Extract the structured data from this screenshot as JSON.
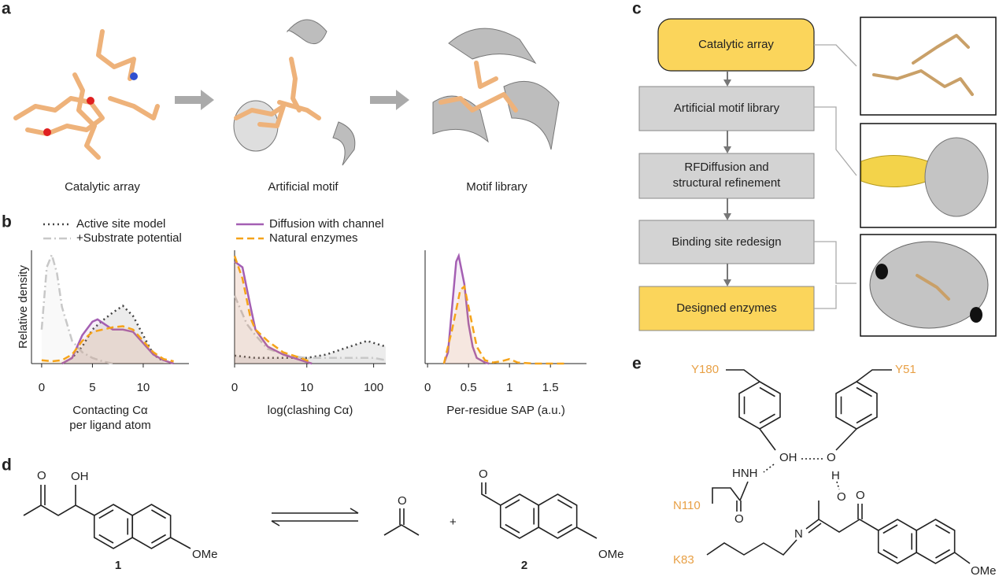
{
  "panel_labels": [
    "a",
    "b",
    "c",
    "d",
    "e"
  ],
  "panel_a": {
    "labels": [
      "Catalytic array",
      "Artificial motif",
      "Motif library"
    ]
  },
  "chart_data": [
    {
      "type": "line",
      "y_label": "Relative density",
      "x_label": [
        "Contacting Cα",
        "per ligand atom"
      ],
      "xlim": [
        -1,
        14.5
      ],
      "xticks": [
        0,
        5,
        10
      ],
      "ylim": [
        0,
        1
      ],
      "series": [
        {
          "name": "Active site model",
          "color": "#444444",
          "style": "dotted",
          "x": [
            2,
            3,
            4,
            5,
            6,
            7,
            8,
            9,
            10,
            11,
            12
          ],
          "values": [
            0,
            0.05,
            0.15,
            0.3,
            0.38,
            0.45,
            0.51,
            0.42,
            0.25,
            0.08,
            0.02
          ]
        },
        {
          "name": "+Substrate potential",
          "color": "#c8c8c8",
          "style": "dashdot",
          "x": [
            0,
            0.5,
            1,
            1.5,
            2,
            3,
            4,
            5,
            6,
            7
          ],
          "values": [
            0.3,
            0.85,
            0.96,
            0.8,
            0.5,
            0.2,
            0.1,
            0.05,
            0.02,
            0
          ]
        },
        {
          "name": "Diffusion with channel",
          "color": "#a45fb3",
          "style": "solid",
          "x": [
            2,
            3,
            4,
            5,
            5.5,
            6,
            7,
            8,
            9,
            10,
            11,
            12,
            13
          ],
          "values": [
            0,
            0.05,
            0.25,
            0.37,
            0.39,
            0.36,
            0.3,
            0.3,
            0.28,
            0.18,
            0.08,
            0.03,
            0
          ]
        },
        {
          "name": "Natural enzymes",
          "color": "#f5a31a",
          "style": "dashed",
          "x": [
            0,
            1,
            2,
            3,
            4,
            5,
            6,
            7,
            8,
            9,
            10,
            11,
            12,
            13
          ],
          "values": [
            0.03,
            0.02,
            0.03,
            0.08,
            0.2,
            0.28,
            0.3,
            0.32,
            0.33,
            0.3,
            0.2,
            0.1,
            0.04,
            0.02
          ]
        }
      ]
    },
    {
      "type": "line",
      "x_label": [
        "log(clashing Cα)"
      ],
      "xscale": "symlog",
      "xlim": [
        0,
        150
      ],
      "xticks": [
        0,
        10,
        100
      ],
      "ylim": [
        0,
        1
      ],
      "series": [
        {
          "color": "#444444",
          "style": "dotted",
          "x": [
            0,
            1,
            2,
            5,
            10,
            20,
            40,
            80,
            150
          ],
          "values": [
            0.07,
            0.05,
            0.05,
            0.05,
            0.05,
            0.08,
            0.14,
            0.2,
            0.15
          ]
        },
        {
          "color": "#c8c8c8",
          "style": "dashdot",
          "x": [
            0,
            0.5,
            1,
            2,
            5,
            10,
            40,
            100,
            150
          ],
          "values": [
            0.6,
            0.35,
            0.25,
            0.13,
            0.07,
            0.05,
            0.05,
            0.05,
            0.03
          ]
        },
        {
          "color": "#a45fb3",
          "style": "solid",
          "x": [
            0,
            0.3,
            0.7,
            1,
            2,
            4,
            8,
            12
          ],
          "values": [
            0.9,
            0.85,
            0.5,
            0.3,
            0.15,
            0.08,
            0.03,
            0
          ]
        },
        {
          "color": "#f5a31a",
          "style": "dashed",
          "x": [
            0,
            0.3,
            0.7,
            1,
            2,
            4,
            8,
            12
          ],
          "values": [
            0.95,
            0.75,
            0.4,
            0.3,
            0.2,
            0.1,
            0.05,
            0.01
          ]
        }
      ]
    },
    {
      "type": "line",
      "x_label": [
        "Per-residue SAP (a.u.)"
      ],
      "xlim": [
        -0.03,
        1.94
      ],
      "xticks": [
        0,
        0.5,
        1,
        1.5
      ],
      "ylim": [
        0,
        1
      ],
      "series": [
        {
          "color": "#a45fb3",
          "style": "solid",
          "x": [
            0.2,
            0.25,
            0.3,
            0.35,
            0.38,
            0.45,
            0.5,
            0.55,
            0.6,
            0.7,
            0.75
          ],
          "values": [
            0,
            0.1,
            0.5,
            0.9,
            0.95,
            0.7,
            0.35,
            0.15,
            0.05,
            0.01,
            0
          ]
        },
        {
          "color": "#f5a31a",
          "style": "dashed",
          "x": [
            0.2,
            0.3,
            0.4,
            0.45,
            0.5,
            0.6,
            0.7,
            0.8,
            0.9,
            1.0,
            1.1,
            1.3,
            1.7
          ],
          "values": [
            0,
            0.3,
            0.65,
            0.68,
            0.5,
            0.15,
            0.03,
            0.01,
            0.02,
            0.04,
            0.01,
            0,
            0
          ]
        }
      ]
    }
  ],
  "panel_c": {
    "steps": [
      [
        "Catalytic array"
      ],
      [
        "Artificial motif library"
      ],
      [
        "RFDiffusion and",
        "structural refinement"
      ],
      [
        "Binding site redesign"
      ],
      [
        "Designed enzymes"
      ]
    ]
  },
  "panel_d": {
    "atom_labels": [
      "O",
      "OH",
      "OMe",
      "O",
      "O",
      "OMe"
    ],
    "plus": "+",
    "compound_labels": [
      "1",
      "2"
    ]
  },
  "panel_e": {
    "residues": [
      "Y180",
      "Y51",
      "N110",
      "K83"
    ],
    "atom_labels": [
      "OH",
      "O",
      "H",
      "HNH",
      "O",
      "O",
      "N",
      "O",
      "OMe"
    ]
  }
}
